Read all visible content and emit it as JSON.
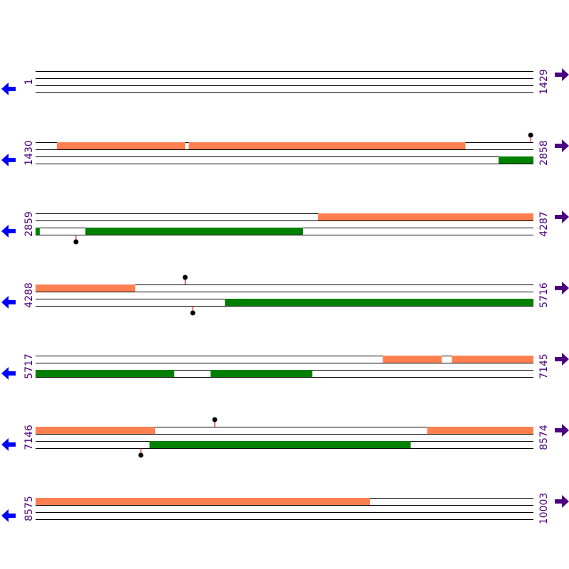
{
  "rows": [
    {
      "start": 1,
      "end": 1429,
      "forward": [],
      "reverse": [],
      "markers_top": [],
      "markers_bottom": []
    },
    {
      "start": 1430,
      "end": 2858,
      "forward": [
        [
          1491,
          1859
        ],
        [
          1869,
          2663
        ]
      ],
      "reverse": [
        [
          2758,
          2858
        ]
      ],
      "markers_top": [
        2850
      ],
      "markers_bottom": []
    },
    {
      "start": 2859,
      "end": 4287,
      "forward": [
        [
          3669,
          4287
        ]
      ],
      "reverse": [
        [
          2859,
          2871
        ],
        [
          3002,
          3626
        ]
      ],
      "markers_top": [],
      "markers_bottom": [
        2975
      ]
    },
    {
      "start": 4288,
      "end": 5716,
      "forward": [
        [
          4288,
          4574
        ]
      ],
      "reverse": [
        [
          4831,
          5716
        ]
      ],
      "markers_top": [
        4717
      ],
      "markers_bottom": [
        4739
      ]
    },
    {
      "start": 5717,
      "end": 7145,
      "forward": [
        [
          6713,
          6882
        ],
        [
          6911,
          7145
        ]
      ],
      "reverse": [
        [
          5717,
          6115
        ],
        [
          6219,
          6511
        ]
      ],
      "markers_top": [],
      "markers_bottom": []
    },
    {
      "start": 7146,
      "end": 8574,
      "forward": [
        [
          7146,
          7489
        ],
        [
          8269,
          8574
        ]
      ],
      "reverse": [
        [
          7473,
          8222
        ]
      ],
      "markers_top": [
        7660
      ],
      "markers_bottom": [
        7448
      ]
    },
    {
      "start": 8575,
      "end": 10003,
      "forward": [
        [
          8575,
          9534
        ]
      ],
      "reverse": [],
      "markers_top": [],
      "markers_bottom": []
    }
  ]
}
